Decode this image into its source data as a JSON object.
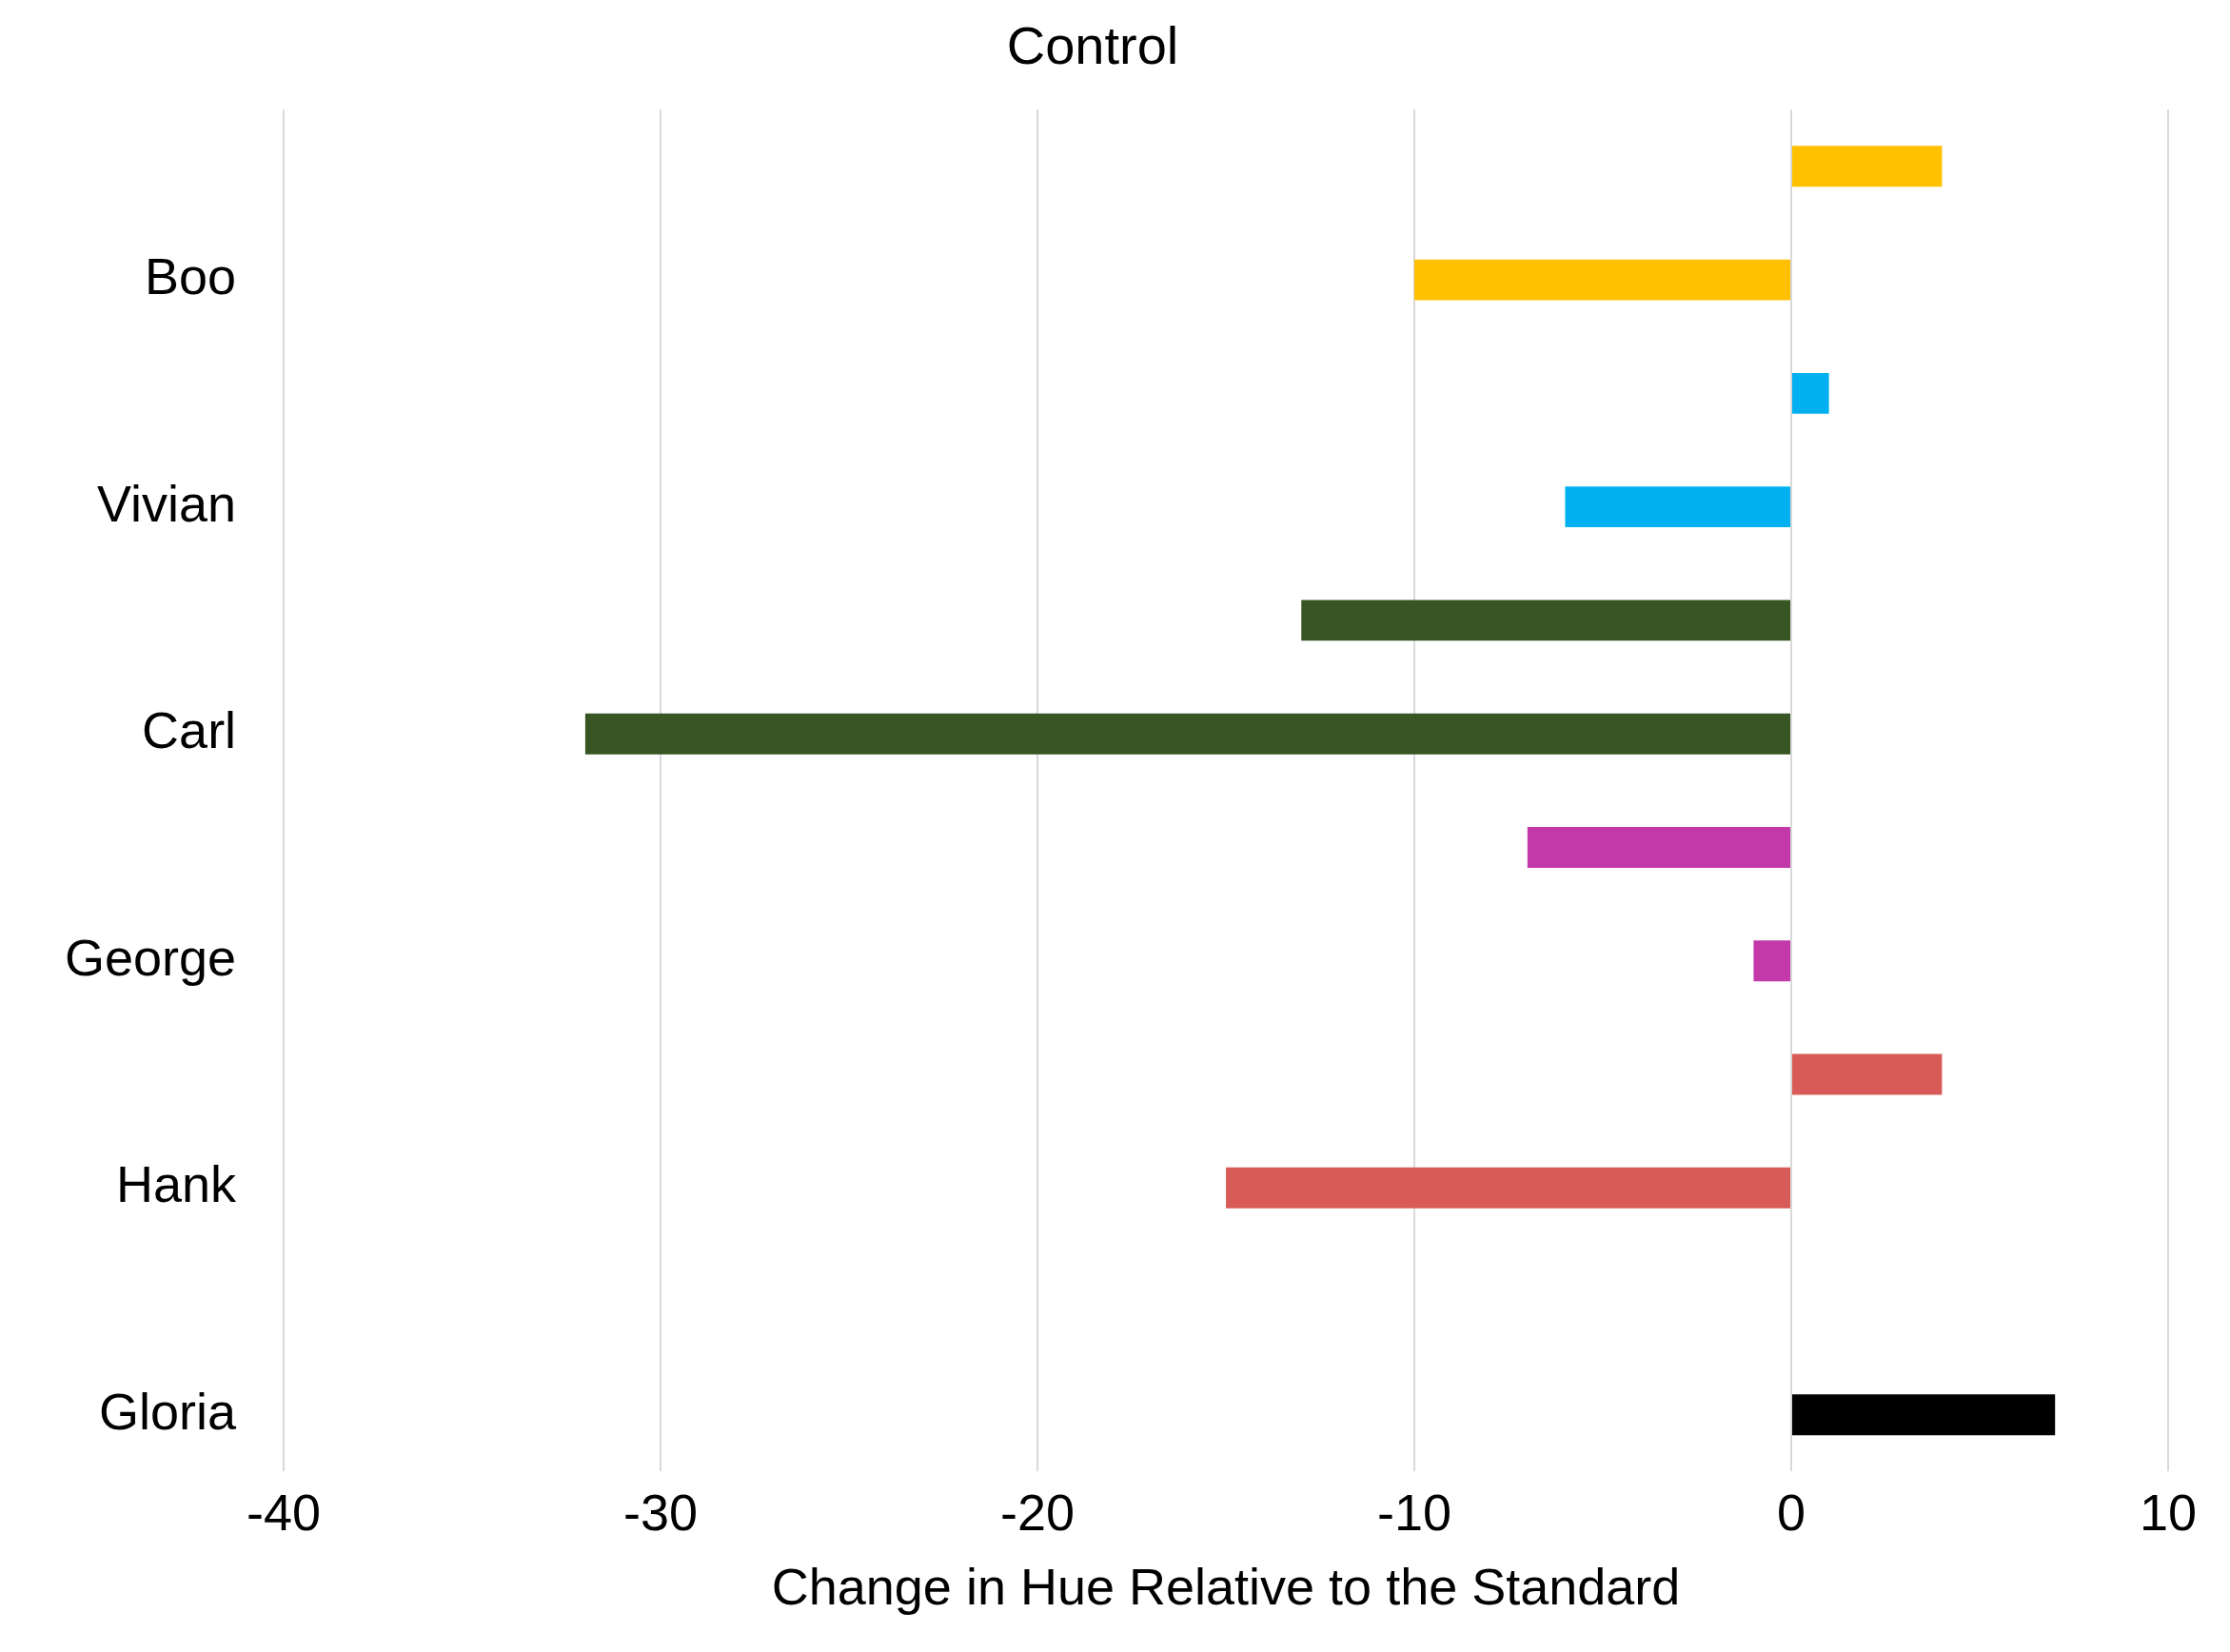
{
  "chart_data": {
    "type": "bar",
    "orientation": "horizontal",
    "title": "Control",
    "xlabel": "Change in Hue Relative to the Standard",
    "categories": [
      "Boo",
      "Vivian",
      "Carl",
      "George",
      "Hank",
      "Gloria"
    ],
    "series": [
      {
        "colors": [
          "#ffc000",
          "#00b0f0",
          "#375623",
          "#c339a9",
          "#d95b57",
          null
        ],
        "values": [
          4,
          1,
          -13,
          -7,
          4,
          null
        ]
      },
      {
        "colors": [
          "#ffc000",
          "#00b0f0",
          "#375623",
          "#c339a9",
          "#d95b57",
          "#000000"
        ],
        "values": [
          -10,
          -6,
          -32,
          -1,
          -15,
          7
        ]
      }
    ],
    "xlim": [
      -40,
      10
    ],
    "xticks": [
      -40,
      -30,
      -20,
      -10,
      0,
      10
    ],
    "grid": "x",
    "legend": false
  }
}
